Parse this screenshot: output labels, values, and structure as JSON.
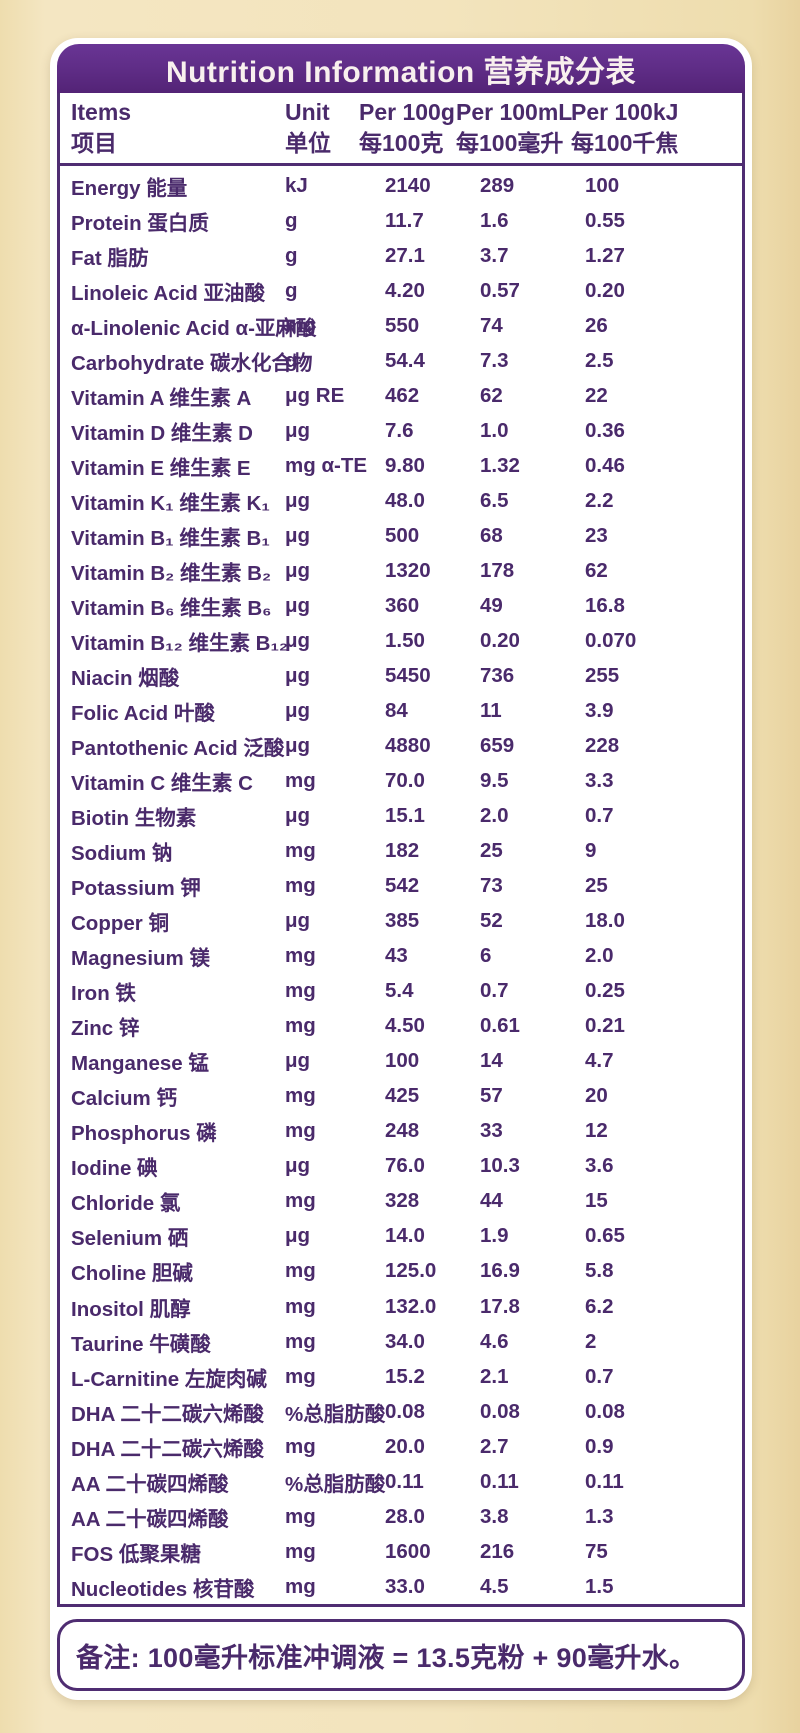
{
  "title": "Nutrition Information 营养成分表",
  "colors": {
    "band_purple": "#5e2c85",
    "text_purple": "#4a2a6b",
    "border_purple": "#4f2d72",
    "background_cream": "#f3e4bd",
    "card_white": "#ffffff",
    "title_text": "#f8f0ee"
  },
  "table": {
    "headers": [
      {
        "en": "Items",
        "zh": "项目"
      },
      {
        "en": "Unit",
        "zh": "单位"
      },
      {
        "en": "Per 100g",
        "zh": "每100克"
      },
      {
        "en": "Per 100mL",
        "zh": "每100毫升"
      },
      {
        "en": "Per 100kJ",
        "zh": "每100千焦"
      }
    ],
    "rows": [
      {
        "item": "Energy 能量",
        "unit": "kJ",
        "per_100g": "2140",
        "per_100ml": "289",
        "per_100kj": "100"
      },
      {
        "item": "Protein 蛋白质",
        "unit": "g",
        "per_100g": "11.7",
        "per_100ml": "1.6",
        "per_100kj": "0.55"
      },
      {
        "item": "Fat 脂肪",
        "unit": "g",
        "per_100g": "27.1",
        "per_100ml": "3.7",
        "per_100kj": "1.27"
      },
      {
        "item": "Linoleic Acid 亚油酸",
        "unit": "g",
        "per_100g": "4.20",
        "per_100ml": "0.57",
        "per_100kj": "0.20"
      },
      {
        "item": "α-Linolenic Acid α-亚麻酸",
        "unit": "mg",
        "per_100g": "550",
        "per_100ml": "74",
        "per_100kj": "26"
      },
      {
        "item": "Carbohydrate 碳水化合物",
        "unit": "g",
        "per_100g": "54.4",
        "per_100ml": "7.3",
        "per_100kj": "2.5"
      },
      {
        "item": "Vitamin A 维生素 A",
        "unit": "μg RE",
        "per_100g": "462",
        "per_100ml": "62",
        "per_100kj": "22"
      },
      {
        "item": "Vitamin D 维生素 D",
        "unit": "μg",
        "per_100g": "7.6",
        "per_100ml": "1.0",
        "per_100kj": "0.36"
      },
      {
        "item": "Vitamin E 维生素 E",
        "unit": "mg α-TE",
        "per_100g": "9.80",
        "per_100ml": "1.32",
        "per_100kj": "0.46"
      },
      {
        "item": "Vitamin K₁ 维生素 K₁",
        "unit": "μg",
        "per_100g": "48.0",
        "per_100ml": "6.5",
        "per_100kj": "2.2"
      },
      {
        "item": "Vitamin B₁ 维生素 B₁",
        "unit": "μg",
        "per_100g": "500",
        "per_100ml": "68",
        "per_100kj": "23"
      },
      {
        "item": "Vitamin B₂ 维生素 B₂",
        "unit": "μg",
        "per_100g": "1320",
        "per_100ml": "178",
        "per_100kj": "62"
      },
      {
        "item": "Vitamin B₆ 维生素 B₆",
        "unit": "μg",
        "per_100g": "360",
        "per_100ml": "49",
        "per_100kj": "16.8"
      },
      {
        "item": "Vitamin B₁₂ 维生素 B₁₂",
        "unit": "μg",
        "per_100g": "1.50",
        "per_100ml": "0.20",
        "per_100kj": "0.070"
      },
      {
        "item": "Niacin 烟酸",
        "unit": "μg",
        "per_100g": "5450",
        "per_100ml": "736",
        "per_100kj": "255"
      },
      {
        "item": "Folic Acid 叶酸",
        "unit": "μg",
        "per_100g": "84",
        "per_100ml": "11",
        "per_100kj": "3.9"
      },
      {
        "item": "Pantothenic Acid 泛酸",
        "unit": "μg",
        "per_100g": "4880",
        "per_100ml": "659",
        "per_100kj": "228"
      },
      {
        "item": "Vitamin C 维生素 C",
        "unit": "mg",
        "per_100g": "70.0",
        "per_100ml": "9.5",
        "per_100kj": "3.3"
      },
      {
        "item": "Biotin 生物素",
        "unit": "μg",
        "per_100g": "15.1",
        "per_100ml": "2.0",
        "per_100kj": "0.7"
      },
      {
        "item": "Sodium 钠",
        "unit": "mg",
        "per_100g": "182",
        "per_100ml": "25",
        "per_100kj": "9"
      },
      {
        "item": "Potassium 钾",
        "unit": "mg",
        "per_100g": "542",
        "per_100ml": "73",
        "per_100kj": "25"
      },
      {
        "item": "Copper 铜",
        "unit": "μg",
        "per_100g": "385",
        "per_100ml": "52",
        "per_100kj": "18.0"
      },
      {
        "item": "Magnesium 镁",
        "unit": "mg",
        "per_100g": "43",
        "per_100ml": "6",
        "per_100kj": "2.0"
      },
      {
        "item": "Iron 铁",
        "unit": "mg",
        "per_100g": "5.4",
        "per_100ml": "0.7",
        "per_100kj": "0.25"
      },
      {
        "item": "Zinc 锌",
        "unit": "mg",
        "per_100g": "4.50",
        "per_100ml": "0.61",
        "per_100kj": "0.21"
      },
      {
        "item": "Manganese 锰",
        "unit": "μg",
        "per_100g": "100",
        "per_100ml": "14",
        "per_100kj": "4.7"
      },
      {
        "item": "Calcium 钙",
        "unit": "mg",
        "per_100g": "425",
        "per_100ml": "57",
        "per_100kj": "20"
      },
      {
        "item": "Phosphorus 磷",
        "unit": "mg",
        "per_100g": "248",
        "per_100ml": "33",
        "per_100kj": "12"
      },
      {
        "item": "Iodine 碘",
        "unit": "μg",
        "per_100g": "76.0",
        "per_100ml": "10.3",
        "per_100kj": "3.6"
      },
      {
        "item": "Chloride 氯",
        "unit": "mg",
        "per_100g": "328",
        "per_100ml": "44",
        "per_100kj": "15"
      },
      {
        "item": "Selenium 硒",
        "unit": "μg",
        "per_100g": "14.0",
        "per_100ml": "1.9",
        "per_100kj": "0.65"
      },
      {
        "item": "Choline 胆碱",
        "unit": "mg",
        "per_100g": "125.0",
        "per_100ml": "16.9",
        "per_100kj": "5.8"
      },
      {
        "item": "Inositol 肌醇",
        "unit": "mg",
        "per_100g": "132.0",
        "per_100ml": "17.8",
        "per_100kj": "6.2"
      },
      {
        "item": "Taurine 牛磺酸",
        "unit": "mg",
        "per_100g": "34.0",
        "per_100ml": "4.6",
        "per_100kj": "2"
      },
      {
        "item": "L-Carnitine 左旋肉碱",
        "unit": "mg",
        "per_100g": "15.2",
        "per_100ml": "2.1",
        "per_100kj": "0.7"
      },
      {
        "item": "DHA 二十二碳六烯酸",
        "unit": "%总脂肪酸",
        "per_100g": "0.08",
        "per_100ml": "0.08",
        "per_100kj": "0.08"
      },
      {
        "item": "DHA 二十二碳六烯酸",
        "unit": "mg",
        "per_100g": "20.0",
        "per_100ml": "2.7",
        "per_100kj": "0.9"
      },
      {
        "item": "AA 二十碳四烯酸",
        "unit": "%总脂肪酸",
        "per_100g": "0.11",
        "per_100ml": "0.11",
        "per_100kj": "0.11"
      },
      {
        "item": "AA 二十碳四烯酸",
        "unit": "mg",
        "per_100g": "28.0",
        "per_100ml": "3.8",
        "per_100kj": "1.3"
      },
      {
        "item": "FOS 低聚果糖",
        "unit": "mg",
        "per_100g": "1600",
        "per_100ml": "216",
        "per_100kj": "75"
      },
      {
        "item": "Nucleotides 核苷酸",
        "unit": "mg",
        "per_100g": "33.0",
        "per_100ml": "4.5",
        "per_100kj": "1.5"
      }
    ]
  },
  "note": "备注: 100毫升标准冲调液 = 13.5克粉 + 90毫升水。"
}
